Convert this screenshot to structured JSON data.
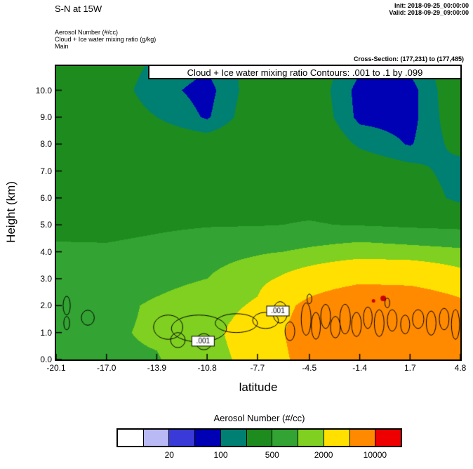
{
  "header": {
    "section_title": "S-N at 15W",
    "init": "Init: 2018-09-25_00:00:00",
    "valid": "Valid: 2018-09-29_09:00:00",
    "layer_lines": [
      "Aerosol Number   (#/cc)",
      "Cloud + Ice water mixing ratio   (g/kg)",
      "Main"
    ],
    "cross_section": "Cross-Section: (177,231) to (177,485)"
  },
  "plot": {
    "inner_title": "Cloud + Ice water mixing ratio Contours: .001 to .1 by .099",
    "xlabel": "latitude",
    "ylabel": "Height (km)"
  },
  "colorbar": {
    "title": "Aerosol Number  (#/cc)",
    "labels": [
      {
        "text": "20",
        "boundary": 2
      },
      {
        "text": "100",
        "boundary": 4
      },
      {
        "text": "500",
        "boundary": 6
      },
      {
        "text": "2000",
        "boundary": 8
      },
      {
        "text": "10000",
        "boundary": 10
      }
    ]
  },
  "chart_data": {
    "type": "heatmap",
    "title": "Cloud + Ice water mixing ratio Contours: .001 to .1 by .099",
    "fill_field": "Aerosol Number (#/cc)",
    "contour_field": "Cloud + Ice water mixing ratio (g/kg)",
    "xlabel": "latitude",
    "ylabel": "Height (km)",
    "x_range": [
      -20.1,
      4.8
    ],
    "y_range": [
      0.0,
      10.9
    ],
    "x_ticks": [
      "-20.1",
      "-17.0",
      "-13.9",
      "-10.8",
      "-7.7",
      "-4.5",
      "-1.4",
      "1.7",
      "4.8"
    ],
    "y_ticks": [
      "0.0",
      "1.0",
      "2.0",
      "3.0",
      "4.0",
      "5.0",
      "6.0",
      "7.0",
      "8.0",
      "9.0",
      "10.0"
    ],
    "thresholds": [
      10,
      20,
      50,
      100,
      200,
      500,
      1000,
      2000,
      5000,
      10000
    ],
    "colors": [
      "#ffffff",
      "#b9b9f5",
      "#3a3ad8",
      "#0000b4",
      "#008073",
      "#1e8b1e",
      "#33a433",
      "#7fd020",
      "#ffe000",
      "#ff8a00",
      "#ee0000"
    ],
    "grid": {
      "lats": [
        -20.1,
        -17.0,
        -13.9,
        -10.8,
        -7.7,
        -4.5,
        -1.4,
        1.7,
        4.8
      ],
      "heights": [
        0,
        1,
        2,
        3,
        4,
        5,
        6,
        7,
        8,
        9,
        10,
        11
      ],
      "values": [
        [
          700,
          900,
          950,
          1500,
          2500,
          6500,
          8000,
          8000,
          7000
        ],
        [
          750,
          900,
          1100,
          1600,
          2800,
          7000,
          9000,
          8500,
          7000
        ],
        [
          700,
          800,
          1100,
          1400,
          2200,
          6000,
          9000,
          8500,
          6000
        ],
        [
          600,
          650,
          800,
          1000,
          1600,
          2800,
          4000,
          3800,
          2600
        ],
        [
          550,
          550,
          600,
          700,
          900,
          1100,
          1300,
          1200,
          1100
        ],
        [
          420,
          400,
          450,
          480,
          480,
          520,
          480,
          420,
          380
        ],
        [
          190,
          360,
          400,
          400,
          420,
          400,
          350,
          300,
          160
        ],
        [
          350,
          330,
          350,
          350,
          380,
          380,
          300,
          250,
          140
        ],
        [
          320,
          300,
          300,
          280,
          320,
          350,
          180,
          90,
          250
        ],
        [
          300,
          280,
          200,
          85,
          300,
          320,
          70,
          60,
          300
        ],
        [
          300,
          270,
          140,
          60,
          280,
          300,
          60,
          55,
          320
        ],
        [
          300,
          280,
          180,
          120,
          260,
          300,
          130,
          140,
          300
        ]
      ]
    },
    "cloud_contour": {
      "level_label": ".001",
      "labels": [
        {
          "lat": -6.44,
          "h": 1.8
        },
        {
          "lat": -11.05,
          "h": 0.68
        }
      ],
      "blobs": [
        [
          -19.45,
          2.0,
          0.22,
          0.35
        ],
        [
          -19.45,
          1.35,
          0.18,
          0.25
        ],
        [
          -18.15,
          1.55,
          0.4,
          0.28
        ],
        [
          -13.2,
          1.2,
          0.9,
          0.45
        ],
        [
          -11.3,
          1.15,
          1.7,
          0.5
        ],
        [
          -12.6,
          0.72,
          0.45,
          0.28
        ],
        [
          -11.0,
          0.66,
          0.5,
          0.3
        ],
        [
          -9.0,
          1.35,
          1.3,
          0.35
        ],
        [
          -7.2,
          1.45,
          0.8,
          0.3
        ],
        [
          -6.3,
          1.75,
          0.45,
          0.4
        ],
        [
          -5.7,
          1.05,
          0.3,
          0.35
        ],
        [
          -4.7,
          1.5,
          0.3,
          0.6
        ],
        [
          -4.1,
          1.25,
          0.28,
          0.5
        ],
        [
          -3.5,
          1.6,
          0.3,
          0.45
        ],
        [
          -2.9,
          1.2,
          0.3,
          0.4
        ],
        [
          -2.3,
          1.5,
          0.33,
          0.55
        ],
        [
          -1.6,
          1.3,
          0.3,
          0.45
        ],
        [
          -0.9,
          1.55,
          0.27,
          0.4
        ],
        [
          -0.2,
          1.35,
          0.3,
          0.5
        ],
        [
          0.6,
          1.45,
          0.3,
          0.4
        ],
        [
          1.4,
          1.3,
          0.28,
          0.35
        ],
        [
          2.2,
          1.5,
          0.35,
          0.35
        ],
        [
          3.0,
          1.35,
          0.3,
          0.45
        ],
        [
          3.8,
          1.5,
          0.3,
          0.4
        ],
        [
          4.5,
          1.3,
          0.25,
          0.55
        ],
        [
          -4.5,
          2.25,
          0.15,
          0.18
        ],
        [
          0.3,
          2.1,
          0.15,
          0.18
        ]
      ]
    },
    "red_spots": [
      [
        0.05,
        2.27,
        4
      ],
      [
        -0.55,
        2.18,
        2.5
      ]
    ]
  }
}
